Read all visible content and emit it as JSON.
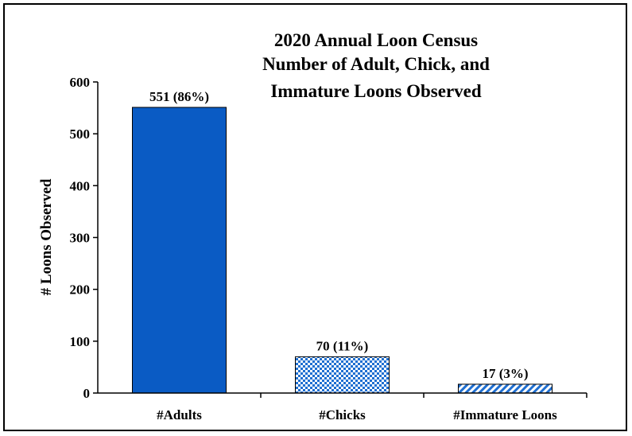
{
  "chart_data": {
    "type": "bar",
    "title_lines": [
      "2020 Annual Loon Census",
      "Number of Adult, Chick, and",
      "Immature Loons Observed"
    ],
    "ylabel": "# Loons Observed",
    "xlabel": "",
    "ylim": [
      0,
      600
    ],
    "yticks": [
      0,
      100,
      200,
      300,
      400,
      500,
      600
    ],
    "categories": [
      "#Adults",
      "#Chicks",
      "#Immature Loons"
    ],
    "values": [
      551,
      70,
      17
    ],
    "data_labels": [
      "551 (86%)",
      "70 (11%)",
      "17 (3%)"
    ],
    "fills": [
      "solid",
      "checker",
      "diagonal-stripes"
    ],
    "colors": {
      "bar": "#0a5bc4",
      "pattern": "#1f6fd1",
      "axis": "#000000"
    },
    "grid": false,
    "legend": "none"
  }
}
